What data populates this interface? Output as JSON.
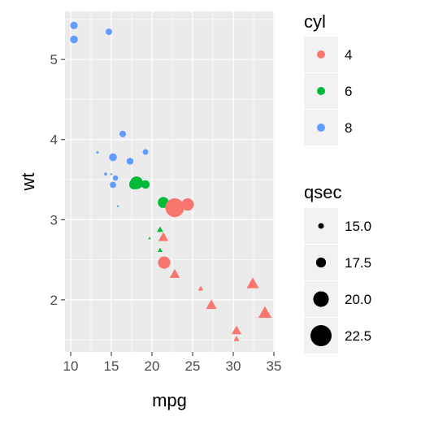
{
  "chart_data": {
    "type": "scatter",
    "xlabel": "mpg",
    "ylabel": "wt",
    "xlim": [
      9.3,
      35.0
    ],
    "ylim": [
      1.35,
      5.6
    ],
    "x_ticks": [
      10,
      15,
      20,
      25,
      30,
      35
    ],
    "x_tick_labels": [
      "10",
      "15",
      "20",
      "25",
      "30",
      "35"
    ],
    "y_ticks": [
      2,
      3,
      4,
      5
    ],
    "y_tick_labels": [
      "2",
      "3",
      "4",
      "5"
    ],
    "grid": true,
    "legend_position": "right",
    "colors": {
      "4": "#f8766d",
      "6": "#00ba38",
      "8": "#619cff",
      "panel": "#ebebeb",
      "grid": "#ffffff"
    },
    "shape_by": "am",
    "shapes": {
      "0": "circle",
      "1": "triangle"
    },
    "legends": [
      {
        "title": "cyl",
        "entries": [
          "4",
          "6",
          "8"
        ]
      },
      {
        "title": "qsec",
        "entries": [
          "15.0",
          "17.5",
          "20.0",
          "22.5"
        ],
        "values": [
          15.0,
          17.5,
          20.0,
          22.5
        ]
      }
    ],
    "points": [
      {
        "mpg": 21.0,
        "wt": 2.62,
        "cyl": "6",
        "qsec": 16.46,
        "am": "1"
      },
      {
        "mpg": 21.0,
        "wt": 2.875,
        "cyl": "6",
        "qsec": 17.02,
        "am": "1"
      },
      {
        "mpg": 22.8,
        "wt": 2.32,
        "cyl": "4",
        "qsec": 18.61,
        "am": "1"
      },
      {
        "mpg": 21.4,
        "wt": 3.215,
        "cyl": "6",
        "qsec": 19.44,
        "am": "0"
      },
      {
        "mpg": 18.7,
        "wt": 3.44,
        "cyl": "8",
        "qsec": 17.02,
        "am": "0"
      },
      {
        "mpg": 18.1,
        "wt": 3.46,
        "cyl": "6",
        "qsec": 20.22,
        "am": "0"
      },
      {
        "mpg": 14.3,
        "wt": 3.57,
        "cyl": "8",
        "qsec": 15.84,
        "am": "0"
      },
      {
        "mpg": 24.4,
        "wt": 3.19,
        "cyl": "4",
        "qsec": 20.0,
        "am": "0"
      },
      {
        "mpg": 22.8,
        "wt": 3.15,
        "cyl": "4",
        "qsec": 22.9,
        "am": "0"
      },
      {
        "mpg": 19.2,
        "wt": 3.44,
        "cyl": "6",
        "qsec": 18.3,
        "am": "0"
      },
      {
        "mpg": 17.8,
        "wt": 3.44,
        "cyl": "6",
        "qsec": 18.9,
        "am": "0"
      },
      {
        "mpg": 16.4,
        "wt": 4.07,
        "cyl": "8",
        "qsec": 17.4,
        "am": "0"
      },
      {
        "mpg": 17.3,
        "wt": 3.73,
        "cyl": "8",
        "qsec": 17.6,
        "am": "0"
      },
      {
        "mpg": 15.2,
        "wt": 3.78,
        "cyl": "8",
        "qsec": 18.0,
        "am": "0"
      },
      {
        "mpg": 10.4,
        "wt": 5.25,
        "cyl": "8",
        "qsec": 17.98,
        "am": "0"
      },
      {
        "mpg": 10.4,
        "wt": 5.424,
        "cyl": "8",
        "qsec": 17.82,
        "am": "0"
      },
      {
        "mpg": 14.7,
        "wt": 5.345,
        "cyl": "8",
        "qsec": 17.42,
        "am": "0"
      },
      {
        "mpg": 32.4,
        "wt": 2.2,
        "cyl": "4",
        "qsec": 19.47,
        "am": "1"
      },
      {
        "mpg": 30.4,
        "wt": 1.615,
        "cyl": "4",
        "qsec": 18.52,
        "am": "1"
      },
      {
        "mpg": 33.9,
        "wt": 1.835,
        "cyl": "4",
        "qsec": 19.9,
        "am": "1"
      },
      {
        "mpg": 21.5,
        "wt": 2.465,
        "cyl": "4",
        "qsec": 20.01,
        "am": "0"
      },
      {
        "mpg": 15.5,
        "wt": 3.52,
        "cyl": "8",
        "qsec": 16.87,
        "am": "0"
      },
      {
        "mpg": 15.2,
        "wt": 3.435,
        "cyl": "8",
        "qsec": 17.3,
        "am": "0"
      },
      {
        "mpg": 13.3,
        "wt": 3.84,
        "cyl": "8",
        "qsec": 15.41,
        "am": "0"
      },
      {
        "mpg": 19.2,
        "wt": 3.845,
        "cyl": "8",
        "qsec": 17.05,
        "am": "0"
      },
      {
        "mpg": 27.3,
        "wt": 1.935,
        "cyl": "4",
        "qsec": 18.9,
        "am": "1"
      },
      {
        "mpg": 26.0,
        "wt": 2.14,
        "cyl": "4",
        "qsec": 16.7,
        "am": "1"
      },
      {
        "mpg": 30.4,
        "wt": 1.513,
        "cyl": "4",
        "qsec": 16.9,
        "am": "1"
      },
      {
        "mpg": 15.8,
        "wt": 3.17,
        "cyl": "8",
        "qsec": 14.5,
        "am": "1"
      },
      {
        "mpg": 19.7,
        "wt": 2.77,
        "cyl": "6",
        "qsec": 15.5,
        "am": "1"
      },
      {
        "mpg": 15.0,
        "wt": 3.57,
        "cyl": "8",
        "qsec": 14.6,
        "am": "1"
      },
      {
        "mpg": 21.4,
        "wt": 2.78,
        "cyl": "4",
        "qsec": 18.6,
        "am": "1"
      }
    ]
  }
}
